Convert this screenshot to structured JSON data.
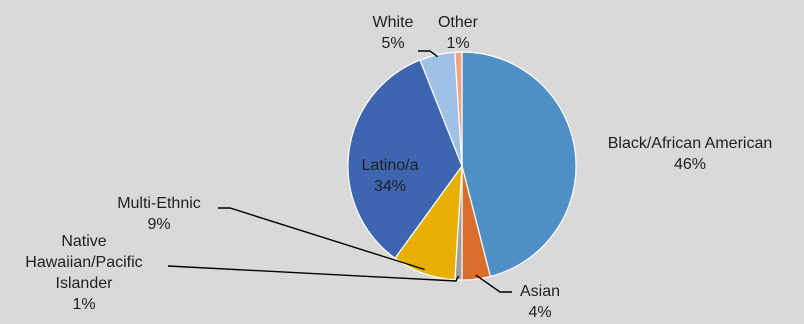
{
  "chart_data": {
    "type": "pie",
    "title": "",
    "start_angle_deg": 0,
    "direction": "clockwise",
    "legend": "none",
    "slices": [
      {
        "name": "Black/African American",
        "value": 46,
        "value_label": "46%",
        "color": "#4e8fc6"
      },
      {
        "name": "Asian",
        "value": 4,
        "value_label": "4%",
        "color": "#d86d2c"
      },
      {
        "name": "Native Hawaiian/Pacific Islander",
        "value": 1,
        "value_label": "1%",
        "color": "#9e9e9e"
      },
      {
        "name": "Multi-Ethnic",
        "value": 9,
        "value_label": "9%",
        "color": "#e8b006"
      },
      {
        "name": "Latino/a",
        "value": 34,
        "value_label": "34%",
        "color": "#3d65b0"
      },
      {
        "name": "White",
        "value": 5,
        "value_label": "5%",
        "color": "#9fc1e6"
      },
      {
        "name": "Other",
        "value": 1,
        "value_label": "1%",
        "color": "#f1a481"
      }
    ],
    "label_lines": {
      "Black/African American": [
        "Black/African American"
      ],
      "Asian": [
        "Asian"
      ],
      "Native Hawaiian/Pacific Islander": [
        "Native",
        "Hawaiian/Pacific",
        "Islander"
      ],
      "Multi-Ethnic": [
        "Multi-Ethnic"
      ],
      "Latino/a": [
        "Latino/a"
      ],
      "White": [
        "White"
      ],
      "Other": [
        "Other"
      ]
    }
  }
}
